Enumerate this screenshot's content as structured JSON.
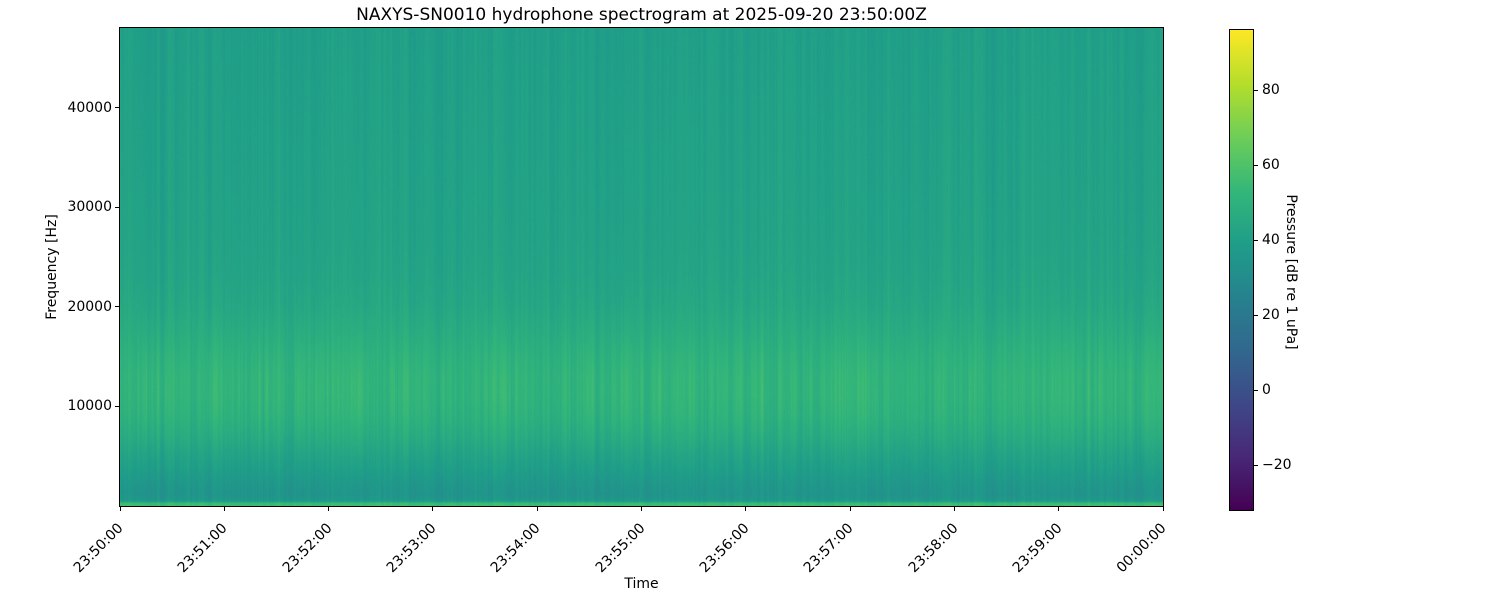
{
  "figure": {
    "background_color": "#ffffff",
    "text_color": "#000000",
    "spine_color": "#000000"
  },
  "chart_data": {
    "type": "heatmap",
    "subtype": "spectrogram",
    "title": "NAXYS-SN0010 hydrophone spectrogram at 2025-09-20 23:50:00Z",
    "xlabel": "Time",
    "ylabel": "Frequency [Hz]",
    "colorbar_label": "Pressure [dB re 1 uPa]",
    "grid": false,
    "legend": "none",
    "x_tick_labels": [
      "23:50:00",
      "23:51:00",
      "23:52:00",
      "23:53:00",
      "23:54:00",
      "23:55:00",
      "23:56:00",
      "23:57:00",
      "23:58:00",
      "23:59:00",
      "00:00:00"
    ],
    "x_tick_rotation_deg": 45,
    "time_range": [
      "23:50:00",
      "00:00:00"
    ],
    "y_axis_range_hz": [
      0,
      48000
    ],
    "y_tick_values": [
      10000,
      20000,
      30000,
      40000
    ],
    "y_tick_labels": [
      "10000",
      "20000",
      "30000",
      "40000"
    ],
    "colormap": "viridis",
    "colormap_anchors": [
      "#440154",
      "#482878",
      "#3e4989",
      "#31688e",
      "#26828e",
      "#1f9e89",
      "#35b779",
      "#6ece58",
      "#b5de2b",
      "#fde725"
    ],
    "color_scale": {
      "vmin": -32,
      "vmax": 96,
      "tick_values": [
        80,
        60,
        40,
        20,
        0,
        -20
      ],
      "tick_labels": [
        "80",
        "60",
        "40",
        "20",
        "0",
        "−20"
      ]
    },
    "frequency_profile_db": [
      [
        0,
        56
      ],
      [
        250,
        55
      ],
      [
        500,
        37
      ],
      [
        1200,
        34.5
      ],
      [
        2200,
        36
      ],
      [
        3500,
        39
      ],
      [
        5000,
        42
      ],
      [
        7000,
        46.5
      ],
      [
        9000,
        50
      ],
      [
        11000,
        51.5
      ],
      [
        13000,
        51.5
      ],
      [
        15000,
        50
      ],
      [
        17500,
        47
      ],
      [
        20000,
        44.5
      ],
      [
        23000,
        43
      ],
      [
        27000,
        42
      ],
      [
        32000,
        41.5
      ],
      [
        38000,
        41
      ],
      [
        44000,
        40.5
      ],
      [
        48000,
        40
      ]
    ],
    "noise_model": {
      "seed": 987654321,
      "column_jitter_db": 1.0,
      "band_jitter_db": 1.7,
      "band_center_hz": 11000,
      "band_sigma_hz": 6500,
      "pixel_noise_db": 0.6
    }
  }
}
